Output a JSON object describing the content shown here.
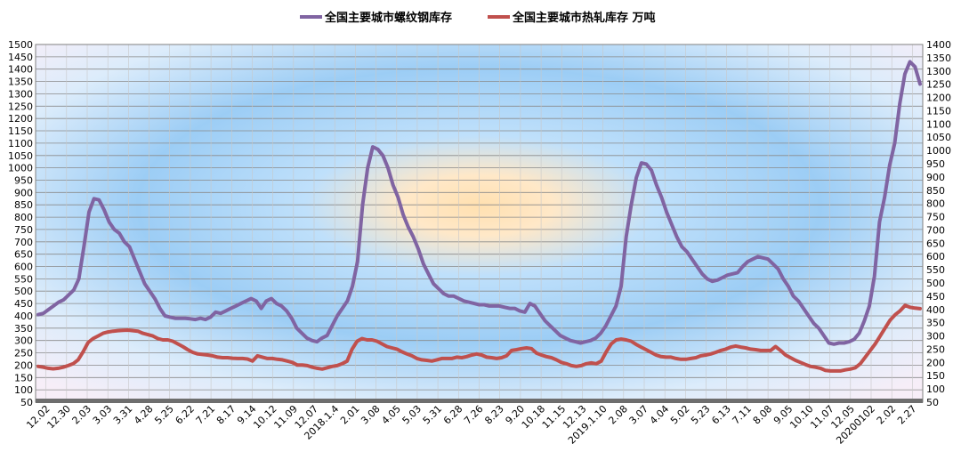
{
  "chart_data": {
    "type": "line",
    "title": "",
    "legend_position": "top",
    "grid": true,
    "y_left": {
      "min": 50,
      "max": 1500,
      "step": 50
    },
    "y_right": {
      "min": 50,
      "max": 1400,
      "step": 50
    },
    "x_tick_labels": [
      "12.02",
      "12.30",
      "2.03",
      "3.03",
      "3.31",
      "4.28",
      "5.25",
      "6.22",
      "7.21",
      "8.17",
      "9.14",
      "10.12",
      "11.09",
      "12.07",
      "2018.1.4",
      "2.01",
      "3.08",
      "4.05",
      "5.03",
      "5.31",
      "6.28",
      "7.26",
      "8.23",
      "9.20",
      "10.18",
      "11.15",
      "12.13",
      "2019.1.10",
      "2.08",
      "3.07",
      "4.04",
      "5.02",
      "5.23",
      "6.13",
      "7.11",
      "8.08",
      "9.05",
      "10.10",
      "11.07",
      "12.05",
      "20200102",
      "2.02",
      "2.27"
    ],
    "series": [
      {
        "name": "全国主要城市螺纹钢库存",
        "color": "#8064A2",
        "axis": "left",
        "values": [
          405,
          410,
          425,
          440,
          455,
          465,
          485,
          505,
          550,
          680,
          820,
          875,
          870,
          830,
          780,
          750,
          735,
          700,
          680,
          630,
          580,
          530,
          500,
          470,
          430,
          400,
          395,
          390,
          390,
          390,
          388,
          385,
          390,
          385,
          395,
          415,
          410,
          420,
          430,
          440,
          450,
          460,
          470,
          460,
          430,
          460,
          470,
          450,
          440,
          420,
          390,
          350,
          330,
          310,
          300,
          295,
          310,
          320,
          360,
          400,
          430,
          460,
          520,
          620,
          850,
          1000,
          1085,
          1075,
          1050,
          1000,
          930,
          880,
          810,
          760,
          720,
          670,
          610,
          570,
          530,
          510,
          490,
          480,
          480,
          470,
          460,
          455,
          450,
          445,
          445,
          440,
          440,
          440,
          435,
          430,
          430,
          420,
          415,
          450,
          440,
          410,
          380,
          360,
          340,
          320,
          310,
          300,
          295,
          290,
          295,
          300,
          310,
          330,
          360,
          400,
          440,
          520,
          720,
          850,
          960,
          1020,
          1015,
          990,
          930,
          880,
          820,
          770,
          720,
          680,
          660,
          630,
          600,
          570,
          550,
          540,
          545,
          555,
          565,
          570,
          575,
          600,
          620,
          630,
          640,
          635,
          630,
          610,
          590,
          550,
          520,
          480,
          460,
          430,
          400,
          370,
          350,
          320,
          290,
          285,
          290,
          290,
          295,
          305,
          330,
          380,
          440,
          560,
          780,
          880,
          1010,
          1100,
          1260,
          1380,
          1430,
          1410,
          1340
        ]
      },
      {
        "name": "全国主要城市热轧库存 万吨",
        "color": "#C0504D",
        "axis": "right",
        "values": [
          185,
          182,
          178,
          176,
          178,
          182,
          188,
          195,
          210,
          240,
          275,
          290,
          300,
          310,
          315,
          318,
          320,
          321,
          322,
          320,
          318,
          310,
          305,
          300,
          290,
          285,
          285,
          280,
          270,
          260,
          248,
          238,
          232,
          230,
          228,
          225,
          220,
          218,
          218,
          216,
          215,
          215,
          213,
          205,
          225,
          220,
          215,
          215,
          212,
          210,
          205,
          200,
          190,
          190,
          188,
          182,
          178,
          175,
          180,
          185,
          188,
          195,
          205,
          250,
          280,
          290,
          285,
          285,
          280,
          270,
          260,
          255,
          250,
          240,
          232,
          225,
          215,
          210,
          208,
          205,
          210,
          215,
          215,
          215,
          220,
          218,
          222,
          228,
          232,
          228,
          220,
          218,
          215,
          218,
          225,
          245,
          248,
          252,
          255,
          252,
          235,
          228,
          222,
          218,
          210,
          200,
          195,
          188,
          185,
          188,
          195,
          198,
          195,
          205,
          240,
          270,
          285,
          288,
          285,
          280,
          268,
          258,
          248,
          238,
          228,
          222,
          220,
          220,
          215,
          212,
          212,
          215,
          218,
          225,
          228,
          232,
          238,
          245,
          250,
          258,
          262,
          258,
          255,
          250,
          248,
          245,
          245,
          245,
          260,
          245,
          228,
          218,
          208,
          200,
          192,
          185,
          182,
          178,
          170,
          168,
          168,
          168,
          172,
          175,
          180,
          195,
          220,
          245,
          270,
          300,
          330,
          360,
          380,
          395,
          415,
          408,
          405,
          403
        ]
      }
    ]
  }
}
